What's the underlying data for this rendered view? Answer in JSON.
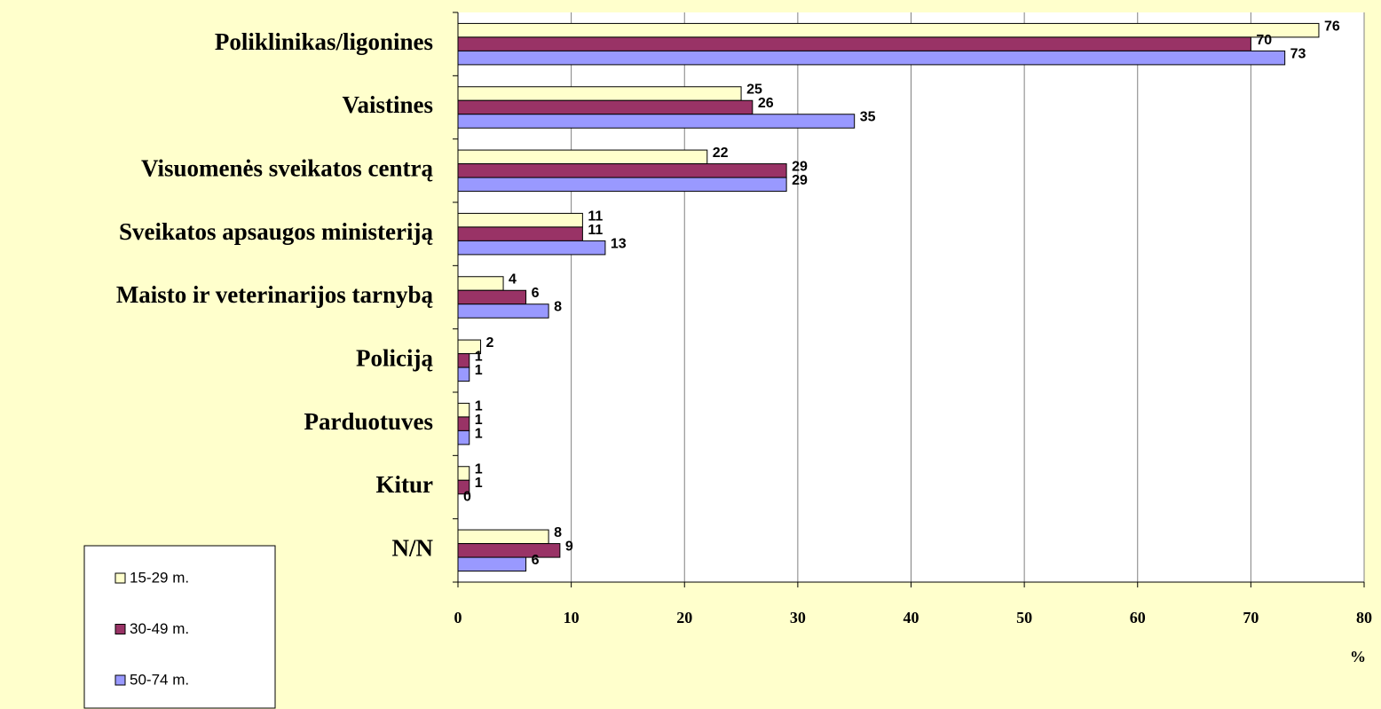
{
  "chart_data": {
    "type": "bar",
    "orientation": "horizontal",
    "categories": [
      "Poliklinikas/ligonines",
      "Vaistines",
      "Visuomenės sveikatos centrą",
      "Sveikatos apsaugos ministeriją",
      "Maisto ir veterinarijos tarnybą",
      "Policiją",
      "Parduotuves",
      "Kitur",
      "N/N"
    ],
    "series": [
      {
        "name": "15-29 m.",
        "color": "#ffffcc",
        "values": [
          76,
          25,
          22,
          11,
          4,
          2,
          1,
          1,
          8
        ]
      },
      {
        "name": "30-49 m.",
        "color": "#993366",
        "values": [
          70,
          26,
          29,
          11,
          6,
          1,
          1,
          1,
          9
        ]
      },
      {
        "name": "50-74 m.",
        "color": "#9999ff",
        "values": [
          73,
          35,
          29,
          13,
          8,
          1,
          1,
          0,
          6
        ]
      }
    ],
    "x_label": "%",
    "xlim": [
      0,
      80
    ],
    "xticks": [
      0,
      10,
      20,
      30,
      40,
      50,
      60,
      70,
      80
    ],
    "grid": true,
    "legend": "bottom-left"
  }
}
